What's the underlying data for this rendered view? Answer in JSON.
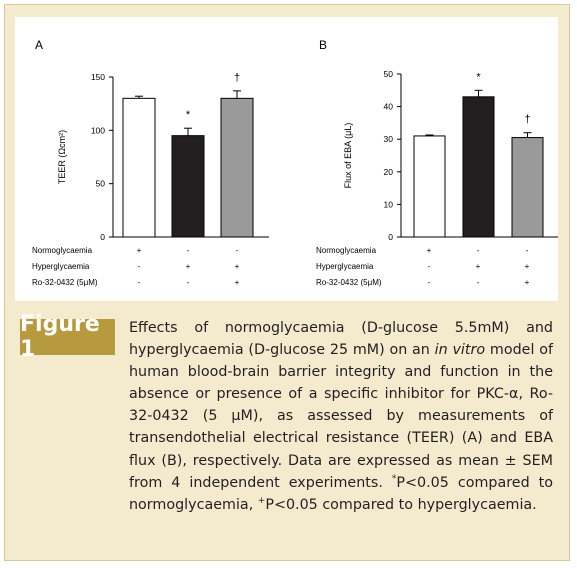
{
  "figure": {
    "badge": "Figure 1",
    "caption": {
      "part1": "Effects of normoglycaemia (D-glucose 5.5mM) and hyperglycaemia (D-glucose 25 mM) on an ",
      "italic": "in vitro",
      "part2": " model of human blood-brain barrier integrity and function in the absence or presence of a specific inhibitor for PKC-α, Ro-32-0432 (5 μM), as assessed by measurements of transendothelial electrical resistance (TEER) (A) and EBA flux (B), respectively. Data are expressed as mean ± SEM from 4 independent experiments. ",
      "sup1": "*",
      "part3": "P<0.05 compared to normoglycaemia, ",
      "sup2": "+",
      "part4": "P<0.05 compared to hyperglycaemia."
    }
  },
  "colors": {
    "frame_bg": "#f4ebcf",
    "badge_bg": "#b89a3e",
    "bar_normo": "#ffffff",
    "bar_hyper": "#231f20",
    "bar_ro": "#9a9a9a"
  },
  "chart_data": [
    {
      "type": "bar",
      "panel_label": "A",
      "ylabel": "TEER (Ωcm²)",
      "ylim": [
        0,
        150
      ],
      "yticks": [
        "0",
        "50",
        "100",
        "150"
      ],
      "categories": [
        "Normoglycaemia",
        "Hyperglycaemia",
        "Ro-32-0432"
      ],
      "values": [
        130,
        95,
        130
      ],
      "errors": [
        2,
        7,
        7
      ],
      "annotations": [
        "",
        "*",
        "†"
      ],
      "condition_rows": [
        {
          "label": "Normoglycaemia",
          "marks": [
            "+",
            "-",
            "-"
          ]
        },
        {
          "label": "Hyperglycaemia",
          "marks": [
            "-",
            "+",
            "+"
          ]
        },
        {
          "label": "Ro-32-0432 (5μM)",
          "marks": [
            "-",
            "-",
            "+"
          ]
        }
      ]
    },
    {
      "type": "bar",
      "panel_label": "B",
      "ylabel": "Flux of EBA (μL)",
      "ylim": [
        0,
        50
      ],
      "yticks": [
        "0",
        "10",
        "20",
        "30",
        "40",
        "50"
      ],
      "categories": [
        "Normoglycaemia",
        "Hyperglycaemia",
        "Ro-32-0432"
      ],
      "values": [
        31,
        43,
        30.5
      ],
      "errors": [
        0.3,
        2,
        1.5
      ],
      "annotations": [
        "",
        "*",
        "†"
      ],
      "condition_rows": [
        {
          "label": "Normoglycaemia",
          "marks": [
            "+",
            "-",
            "-"
          ]
        },
        {
          "label": "Hyperglycaemia",
          "marks": [
            "-",
            "+",
            "+"
          ]
        },
        {
          "label": "Ro-32-0432 (5μM)",
          "marks": [
            "-",
            "-",
            "+"
          ]
        }
      ]
    }
  ]
}
